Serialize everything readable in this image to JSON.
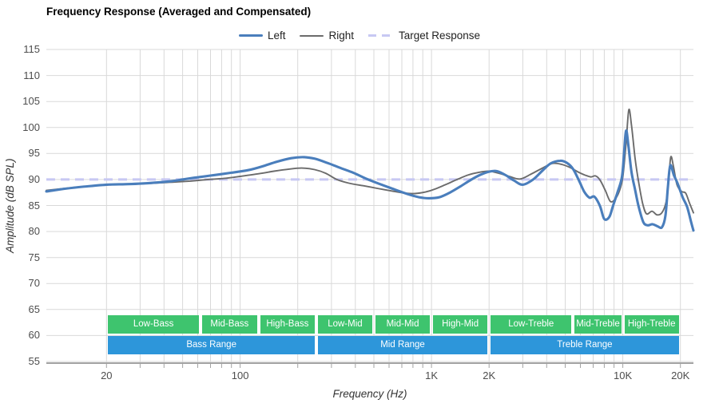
{
  "title": "Frequency Response (Averaged and Compensated)",
  "colors": {
    "left": "#4a7ebc",
    "right": "#6b6b6b",
    "target": "#c7c8f3",
    "band_green": "#3ec46e",
    "band_blue": "#2d96da",
    "gridline": "#d9d9d9",
    "axis_line": "#a3a3a3",
    "tick_text": "#4d4d4d",
    "band_text": "#ffffff"
  },
  "legend": {
    "items": [
      {
        "label": "Left",
        "color": "#4a7ebc",
        "dash": false,
        "thickness": 3
      },
      {
        "label": "Right",
        "color": "#6b6b6b",
        "dash": false,
        "thickness": 2
      },
      {
        "label": "Target Response",
        "color": "#c7c8f3",
        "dash": true,
        "thickness": 3
      }
    ]
  },
  "axes": {
    "x_label": "Frequency (Hz)",
    "y_label": "Amplitude (dB SPL)",
    "y_ticks": [
      115,
      110,
      105,
      100,
      95,
      90,
      85,
      80,
      75,
      70,
      65,
      60,
      55
    ],
    "x_tick_labels": [
      {
        "f": 20,
        "label": "20"
      },
      {
        "f": 100,
        "label": "100"
      },
      {
        "f": 1000,
        "label": "1K"
      },
      {
        "f": 2000,
        "label": "2K"
      },
      {
        "f": 10000,
        "label": "10K"
      },
      {
        "f": 20000,
        "label": "20K"
      }
    ],
    "x_gridline_freqs": [
      20,
      30,
      40,
      50,
      60,
      70,
      80,
      90,
      100,
      200,
      300,
      400,
      500,
      600,
      700,
      800,
      900,
      1000,
      2000,
      3000,
      4000,
      5000,
      6000,
      7000,
      8000,
      9000,
      10000,
      20000
    ]
  },
  "chart_data": {
    "type": "line",
    "title": "Frequency Response (Averaged and Compensated)",
    "xlabel": "Frequency (Hz)",
    "ylabel": "Amplitude (dB SPL)",
    "x_scale": "log",
    "xlim": [
      9.7,
      23400
    ],
    "ylim": [
      55,
      115
    ],
    "grid": true,
    "legend_position": "top-center",
    "target_level_db": 90,
    "series": [
      {
        "name": "Left",
        "points": [
          [
            9.7,
            87.7
          ],
          [
            12,
            88.2
          ],
          [
            15,
            88.6
          ],
          [
            20,
            89.0
          ],
          [
            25,
            89.1
          ],
          [
            30,
            89.2
          ],
          [
            36,
            89.4
          ],
          [
            44,
            89.7
          ],
          [
            52,
            90.1
          ],
          [
            62,
            90.5
          ],
          [
            75,
            90.9
          ],
          [
            90,
            91.3
          ],
          [
            110,
            91.8
          ],
          [
            130,
            92.5
          ],
          [
            155,
            93.4
          ],
          [
            185,
            94.1
          ],
          [
            215,
            94.3
          ],
          [
            245,
            94.0
          ],
          [
            285,
            93.2
          ],
          [
            330,
            92.3
          ],
          [
            390,
            91.3
          ],
          [
            460,
            90.1
          ],
          [
            540,
            89.1
          ],
          [
            640,
            88.1
          ],
          [
            750,
            87.2
          ],
          [
            860,
            86.6
          ],
          [
            970,
            86.4
          ],
          [
            1100,
            86.6
          ],
          [
            1250,
            87.5
          ],
          [
            1420,
            88.7
          ],
          [
            1600,
            89.9
          ],
          [
            1800,
            90.9
          ],
          [
            2000,
            91.5
          ],
          [
            2200,
            91.6
          ],
          [
            2450,
            90.8
          ],
          [
            2700,
            89.8
          ],
          [
            3000,
            89.0
          ],
          [
            3400,
            90.0
          ],
          [
            3800,
            91.7
          ],
          [
            4200,
            93.1
          ],
          [
            4700,
            93.6
          ],
          [
            5100,
            93.2
          ],
          [
            5500,
            92.0
          ],
          [
            5900,
            89.8
          ],
          [
            6300,
            87.6
          ],
          [
            6700,
            86.5
          ],
          [
            7100,
            86.7
          ],
          [
            7600,
            84.9
          ],
          [
            8000,
            82.4
          ],
          [
            8500,
            82.8
          ],
          [
            8900,
            85.0
          ],
          [
            9400,
            87.6
          ],
          [
            9900,
            90.5
          ],
          [
            10150,
            95.0
          ],
          [
            10400,
            99.4
          ],
          [
            10700,
            96.5
          ],
          [
            11100,
            91.5
          ],
          [
            11600,
            88.0
          ],
          [
            12100,
            84.8
          ],
          [
            12800,
            81.8
          ],
          [
            13500,
            81.2
          ],
          [
            14300,
            81.4
          ],
          [
            15200,
            81.0
          ],
          [
            16000,
            80.8
          ],
          [
            16700,
            83.0
          ],
          [
            17200,
            88.5
          ],
          [
            17700,
            92.7
          ],
          [
            18500,
            90.8
          ],
          [
            19300,
            89.3
          ],
          [
            20600,
            86.5
          ],
          [
            21700,
            84.7
          ],
          [
            22800,
            81.7
          ],
          [
            23400,
            80.2
          ]
        ]
      },
      {
        "name": "Right",
        "points": [
          [
            9.7,
            87.9
          ],
          [
            13,
            88.4
          ],
          [
            17,
            88.8
          ],
          [
            22,
            89.0
          ],
          [
            28,
            89.1
          ],
          [
            35,
            89.3
          ],
          [
            45,
            89.5
          ],
          [
            55,
            89.7
          ],
          [
            68,
            90.0
          ],
          [
            82,
            90.2
          ],
          [
            100,
            90.6
          ],
          [
            125,
            91.1
          ],
          [
            150,
            91.6
          ],
          [
            180,
            92.0
          ],
          [
            210,
            92.2
          ],
          [
            245,
            91.9
          ],
          [
            280,
            91.2
          ],
          [
            320,
            90.0
          ],
          [
            370,
            89.3
          ],
          [
            440,
            88.8
          ],
          [
            520,
            88.3
          ],
          [
            620,
            87.8
          ],
          [
            720,
            87.4
          ],
          [
            820,
            87.3
          ],
          [
            930,
            87.6
          ],
          [
            1050,
            88.2
          ],
          [
            1200,
            89.1
          ],
          [
            1380,
            90.1
          ],
          [
            1560,
            90.9
          ],
          [
            1780,
            91.4
          ],
          [
            2000,
            91.6
          ],
          [
            2250,
            91.2
          ],
          [
            2550,
            90.6
          ],
          [
            2900,
            90.1
          ],
          [
            3300,
            91.0
          ],
          [
            3800,
            92.2
          ],
          [
            4300,
            93.1
          ],
          [
            4800,
            92.9
          ],
          [
            5300,
            92.3
          ],
          [
            5800,
            91.5
          ],
          [
            6300,
            90.9
          ],
          [
            6800,
            90.5
          ],
          [
            7200,
            90.7
          ],
          [
            7600,
            89.9
          ],
          [
            8100,
            87.9
          ],
          [
            8600,
            85.8
          ],
          [
            9100,
            86.2
          ],
          [
            9600,
            87.8
          ],
          [
            10000,
            90.5
          ],
          [
            10400,
            97.0
          ],
          [
            10750,
            103.4
          ],
          [
            11100,
            100.5
          ],
          [
            11600,
            94.0
          ],
          [
            12100,
            89.5
          ],
          [
            12700,
            85.4
          ],
          [
            13300,
            83.4
          ],
          [
            14200,
            83.9
          ],
          [
            15100,
            83.2
          ],
          [
            16000,
            83.6
          ],
          [
            16800,
            85.5
          ],
          [
            17300,
            89.0
          ],
          [
            17800,
            94.3
          ],
          [
            18400,
            92.5
          ],
          [
            19200,
            89.0
          ],
          [
            20300,
            87.7
          ],
          [
            21300,
            87.4
          ],
          [
            22300,
            85.5
          ],
          [
            23400,
            83.6
          ]
        ]
      },
      {
        "name": "Target Response",
        "points": [
          [
            9.7,
            90
          ],
          [
            23400,
            90
          ]
        ]
      }
    ]
  },
  "bands": {
    "green": [
      {
        "label": "Low-Bass",
        "from_hz": 20,
        "to_hz": 62
      },
      {
        "label": "Mid-Bass",
        "from_hz": 62,
        "to_hz": 125
      },
      {
        "label": "High-Bass",
        "from_hz": 125,
        "to_hz": 250
      },
      {
        "label": "Low-Mid",
        "from_hz": 250,
        "to_hz": 500
      },
      {
        "label": "Mid-Mid",
        "from_hz": 500,
        "to_hz": 1000
      },
      {
        "label": "High-Mid",
        "from_hz": 1000,
        "to_hz": 2000
      },
      {
        "label": "Low-Treble",
        "from_hz": 2000,
        "to_hz": 5500
      },
      {
        "label": "Mid-Treble",
        "from_hz": 5500,
        "to_hz": 10000
      },
      {
        "label": "High-Treble",
        "from_hz": 10000,
        "to_hz": 20000
      }
    ],
    "blue": [
      {
        "label": "Bass Range",
        "from_hz": 20,
        "to_hz": 250
      },
      {
        "label": "Mid Range",
        "from_hz": 250,
        "to_hz": 2000
      },
      {
        "label": "Treble Range",
        "from_hz": 2000,
        "to_hz": 20000
      }
    ]
  }
}
